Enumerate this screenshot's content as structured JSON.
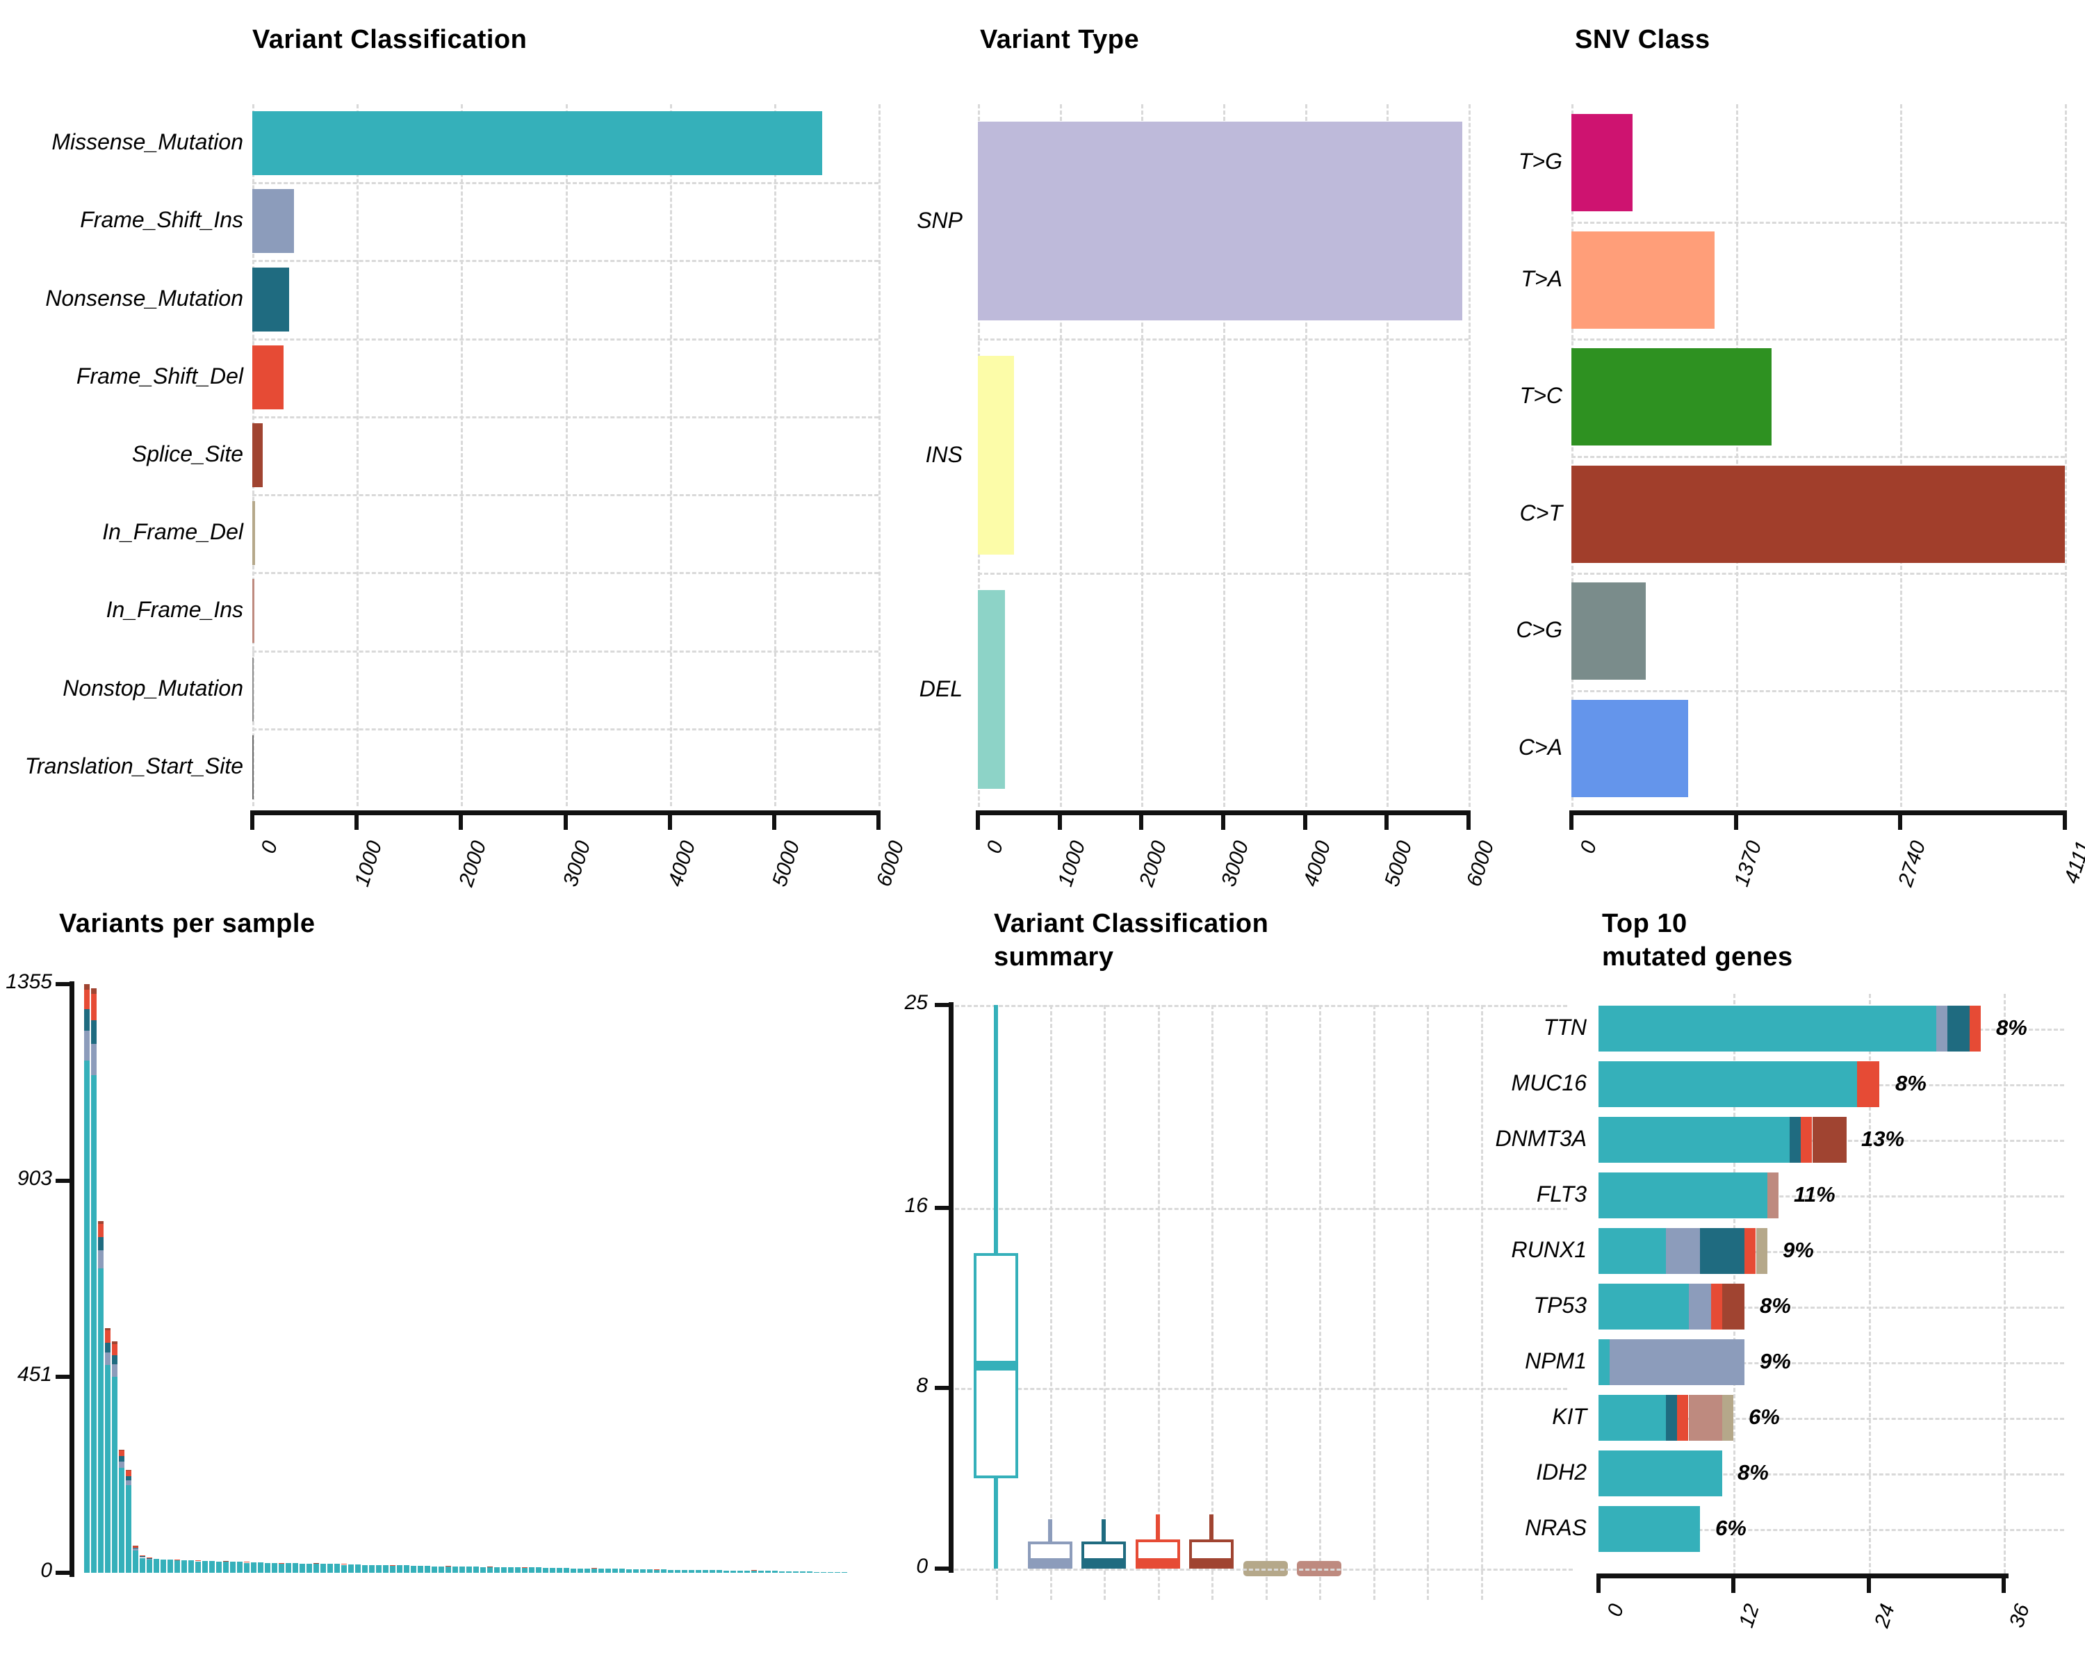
{
  "colors": {
    "missense": "#35B0BA",
    "frame_shift_ins": "#8C9CBB",
    "nonsense": "#1F6B80",
    "frame_shift_del": "#E64B35",
    "splice_site": "#A04431",
    "in_frame_del": "#B5A88A",
    "in_frame_ins": "#BE8A7F",
    "nonstop": "#8E8E8E",
    "translation_start_site": "#6b6b6b",
    "snp": "#BEBADA",
    "ins": "#FCFCA8",
    "del": "#8DD3C7",
    "t_g": "#CE1370",
    "t_a": "#FF9E79",
    "t_c": "#2E9121",
    "c_t": "#A13E2B",
    "c_g": "#7A8C8B",
    "c_a": "#6495EB",
    "grid": "#D9D9D9",
    "axis": "#111111"
  },
  "chart_data": [
    {
      "id": "variant_classification",
      "type": "bar",
      "orientation": "horizontal",
      "title": "Variant Classification",
      "categories": [
        "Missense_Mutation",
        "Frame_Shift_Ins",
        "Nonsense_Mutation",
        "Frame_Shift_Del",
        "Splice_Site",
        "In_Frame_Del",
        "In_Frame_Ins",
        "Nonstop_Mutation",
        "Translation_Start_Site"
      ],
      "values": [
        5460,
        400,
        350,
        300,
        100,
        25,
        18,
        6,
        3
      ],
      "color_keys": [
        "missense",
        "frame_shift_ins",
        "nonsense",
        "frame_shift_del",
        "splice_site",
        "in_frame_del",
        "in_frame_ins",
        "nonstop",
        "translation_start_site"
      ],
      "x_ticks": [
        0,
        1000,
        2000,
        3000,
        4000,
        5000,
        6000
      ],
      "x_max": 6000,
      "grid": true,
      "legend_position": "none"
    },
    {
      "id": "variant_type",
      "type": "bar",
      "orientation": "horizontal",
      "title": "Variant Type",
      "categories": [
        "SNP",
        "INS",
        "DEL"
      ],
      "values": [
        5920,
        440,
        330
      ],
      "color_keys": [
        "snp",
        "ins",
        "del"
      ],
      "x_ticks": [
        0,
        1000,
        2000,
        3000,
        4000,
        5000,
        6000
      ],
      "x_max": 6000,
      "grid": true,
      "legend_position": "none"
    },
    {
      "id": "snv_class",
      "type": "bar",
      "orientation": "horizontal",
      "title": "SNV Class",
      "categories": [
        "T>G",
        "T>A",
        "T>C",
        "C>T",
        "C>G",
        "C>A"
      ],
      "values": [
        510,
        1190,
        1670,
        4111,
        620,
        970
      ],
      "color_keys": [
        "t_g",
        "t_a",
        "t_c",
        "c_t",
        "c_g",
        "c_a"
      ],
      "x_ticks": [
        0,
        1370,
        2740,
        4111
      ],
      "x_max": 4111,
      "grid": true,
      "legend_position": "none"
    },
    {
      "id": "variants_per_sample",
      "type": "bar",
      "orientation": "vertical",
      "title": "Variants per sample",
      "ylabel": "",
      "y_ticks": [
        0,
        451,
        903,
        1355
      ],
      "y_max": 1355,
      "stack_order": [
        "missense",
        "frame_shift_ins",
        "nonsense",
        "frame_shift_del",
        "splice_site"
      ],
      "bars": [
        [
          1180,
          68,
          50,
          45,
          12
        ],
        [
          1145,
          72,
          55,
          60,
          13
        ],
        [
          700,
          42,
          30,
          32,
          6
        ],
        [
          478,
          30,
          22,
          28,
          5
        ],
        [
          452,
          28,
          20,
          26,
          6
        ],
        [
          242,
          14,
          12,
          13,
          2
        ],
        [
          202,
          12,
          9,
          12,
          2
        ],
        [
          52,
          4,
          2,
          3,
          1
        ],
        [
          34,
          2,
          1,
          2,
          0
        ],
        [
          30,
          1,
          1,
          2,
          0
        ],
        [
          32,
          0,
          0,
          0,
          0
        ],
        [
          31,
          0,
          0,
          0,
          0
        ],
        [
          30,
          0,
          0,
          0,
          0
        ],
        [
          28,
          0,
          0,
          2,
          0
        ],
        [
          29,
          0,
          0,
          0,
          0
        ],
        [
          28,
          0,
          0,
          0,
          0
        ],
        [
          26,
          0,
          0,
          2,
          0
        ],
        [
          27,
          0,
          0,
          0,
          0
        ],
        [
          27,
          0,
          0,
          0,
          0
        ],
        [
          26,
          0,
          0,
          0,
          0
        ],
        [
          25,
          0,
          0,
          0,
          1
        ],
        [
          25,
          0,
          0,
          0,
          0
        ],
        [
          25,
          0,
          0,
          0,
          0
        ],
        [
          23,
          0,
          0,
          2,
          0
        ],
        [
          24,
          0,
          0,
          0,
          0
        ],
        [
          24,
          0,
          0,
          0,
          0
        ],
        [
          23,
          0,
          0,
          0,
          0
        ],
        [
          23,
          0,
          0,
          0,
          0
        ],
        [
          21,
          0,
          0,
          2,
          0
        ],
        [
          22,
          0,
          0,
          0,
          0
        ],
        [
          22,
          0,
          0,
          0,
          0
        ],
        [
          21,
          0,
          0,
          0,
          0
        ],
        [
          21,
          0,
          0,
          0,
          0
        ],
        [
          20,
          0,
          0,
          0,
          1
        ],
        [
          20,
          0,
          0,
          0,
          0
        ],
        [
          20,
          0,
          0,
          0,
          0
        ],
        [
          20,
          0,
          0,
          0,
          0
        ],
        [
          18,
          0,
          0,
          2,
          0
        ],
        [
          19,
          0,
          0,
          0,
          0
        ],
        [
          19,
          0,
          0,
          0,
          0
        ],
        [
          18,
          0,
          0,
          0,
          0
        ],
        [
          18,
          0,
          0,
          0,
          0
        ],
        [
          18,
          0,
          0,
          0,
          0
        ],
        [
          17,
          0,
          0,
          0,
          0
        ],
        [
          16,
          0,
          0,
          1,
          0
        ],
        [
          17,
          0,
          0,
          0,
          0
        ],
        [
          17,
          0,
          0,
          0,
          0
        ],
        [
          16,
          0,
          0,
          0,
          0
        ],
        [
          16,
          0,
          0,
          0,
          0
        ],
        [
          16,
          0,
          0,
          0,
          0
        ],
        [
          15,
          0,
          0,
          0,
          0
        ],
        [
          15,
          0,
          0,
          0,
          0
        ],
        [
          14,
          0,
          0,
          1,
          0
        ],
        [
          15,
          0,
          0,
          0,
          0
        ],
        [
          14,
          0,
          0,
          0,
          0
        ],
        [
          14,
          0,
          0,
          0,
          0
        ],
        [
          14,
          0,
          0,
          0,
          0
        ],
        [
          13,
          0,
          0,
          0,
          0
        ],
        [
          13,
          0,
          0,
          0,
          1
        ],
        [
          13,
          0,
          0,
          0,
          0
        ],
        [
          13,
          0,
          0,
          0,
          0
        ],
        [
          12,
          0,
          0,
          0,
          0
        ],
        [
          12,
          0,
          0,
          0,
          0
        ],
        [
          11,
          0,
          0,
          1,
          0
        ],
        [
          12,
          0,
          0,
          0,
          0
        ],
        [
          12,
          0,
          0,
          0,
          0
        ],
        [
          11,
          0,
          0,
          0,
          0
        ],
        [
          11,
          0,
          0,
          0,
          0
        ],
        [
          11,
          0,
          0,
          0,
          0
        ],
        [
          11,
          0,
          0,
          0,
          0
        ],
        [
          10,
          0,
          0,
          0,
          0
        ],
        [
          10,
          0,
          0,
          0,
          0
        ],
        [
          10,
          0,
          0,
          0,
          0
        ],
        [
          9,
          0,
          0,
          1,
          0
        ],
        [
          9,
          0,
          0,
          0,
          0
        ],
        [
          9,
          0,
          0,
          0,
          0
        ],
        [
          9,
          0,
          0,
          0,
          0
        ],
        [
          9,
          0,
          0,
          0,
          0
        ],
        [
          8,
          0,
          0,
          0,
          0
        ],
        [
          8,
          0,
          0,
          0,
          0
        ],
        [
          8,
          0,
          0,
          0,
          0
        ],
        [
          8,
          0,
          0,
          0,
          0
        ],
        [
          7,
          0,
          0,
          1,
          0
        ],
        [
          8,
          0,
          0,
          0,
          0
        ],
        [
          7,
          0,
          0,
          0,
          0
        ],
        [
          7,
          0,
          0,
          0,
          0
        ],
        [
          7,
          0,
          0,
          0,
          0
        ],
        [
          6,
          0,
          0,
          0,
          0
        ],
        [
          6,
          0,
          0,
          0,
          0
        ],
        [
          6,
          0,
          0,
          0,
          0
        ],
        [
          6,
          0,
          0,
          0,
          0
        ],
        [
          6,
          0,
          0,
          0,
          0
        ],
        [
          5,
          0,
          0,
          0,
          0
        ],
        [
          5,
          0,
          0,
          0,
          0
        ],
        [
          5,
          0,
          0,
          0,
          0
        ],
        [
          5,
          0,
          0,
          0,
          0
        ],
        [
          4,
          0,
          0,
          1,
          0
        ],
        [
          4,
          0,
          0,
          0,
          0
        ],
        [
          4,
          0,
          0,
          0,
          0
        ],
        [
          4,
          0,
          0,
          0,
          0
        ],
        [
          3,
          0,
          0,
          0,
          0
        ],
        [
          3,
          0,
          0,
          0,
          0
        ],
        [
          3,
          0,
          0,
          0,
          0
        ],
        [
          3,
          0,
          0,
          0,
          0
        ],
        [
          3,
          0,
          0,
          0,
          0
        ],
        [
          2,
          0,
          0,
          0,
          0
        ],
        [
          2,
          0,
          0,
          0,
          0
        ],
        [
          2,
          0,
          0,
          0,
          0
        ],
        [
          2,
          0,
          0,
          0,
          0
        ],
        [
          2,
          0,
          0,
          0,
          0
        ]
      ]
    },
    {
      "id": "classification_summary",
      "type": "boxplot",
      "title_line1": "Variant Classification",
      "title_line2": "summary",
      "y_ticks": [
        0,
        8,
        16,
        25
      ],
      "y_max": 25,
      "n_grid_columns": 10,
      "boxes": [
        {
          "color_key": "missense",
          "low": 0,
          "q1": 4,
          "median": 9,
          "q3": 14,
          "high": 25,
          "flat": false
        },
        {
          "color_key": "frame_shift_ins",
          "low": 0,
          "q1": 0,
          "median": 0.25,
          "q3": 1.2,
          "high": 2.2,
          "flat": false
        },
        {
          "color_key": "nonsense",
          "low": 0,
          "q1": 0,
          "median": 0.25,
          "q3": 1.2,
          "high": 2.2,
          "flat": false
        },
        {
          "color_key": "frame_shift_del",
          "low": 0,
          "q1": 0,
          "median": 0.25,
          "q3": 1.3,
          "high": 2.4,
          "flat": false
        },
        {
          "color_key": "splice_site",
          "low": 0,
          "q1": 0,
          "median": 0.25,
          "q3": 1.3,
          "high": 2.4,
          "flat": false
        },
        {
          "color_key": "in_frame_del",
          "low": 0,
          "q1": 0,
          "median": 0.1,
          "q3": 0.4,
          "high": 0.4,
          "flat": true
        },
        {
          "color_key": "in_frame_ins",
          "low": 0,
          "q1": 0,
          "median": 0.1,
          "q3": 0.4,
          "high": 0.4,
          "flat": true
        }
      ]
    },
    {
      "id": "top_genes",
      "type": "bar",
      "orientation": "horizontal",
      "title_line1": "Top 10",
      "title_line2": "mutated genes",
      "x_ticks": [
        0,
        12,
        24,
        36
      ],
      "x_max": 36,
      "genes": [
        {
          "name": "TTN",
          "pct": "8%",
          "segments": [
            [
              "missense",
              30
            ],
            [
              "frame_shift_ins",
              1
            ],
            [
              "nonsense",
              2
            ],
            [
              "frame_shift_del",
              1
            ]
          ]
        },
        {
          "name": "MUC16",
          "pct": "8%",
          "segments": [
            [
              "missense",
              23
            ],
            [
              "frame_shift_del",
              2
            ]
          ]
        },
        {
          "name": "DNMT3A",
          "pct": "13%",
          "segments": [
            [
              "missense",
              17
            ],
            [
              "nonsense",
              1
            ],
            [
              "frame_shift_del",
              1
            ],
            [
              "splice_site",
              3
            ]
          ]
        },
        {
          "name": "FLT3",
          "pct": "11%",
          "segments": [
            [
              "missense",
              15
            ],
            [
              "in_frame_ins",
              1
            ]
          ]
        },
        {
          "name": "RUNX1",
          "pct": "9%",
          "segments": [
            [
              "missense",
              6
            ],
            [
              "frame_shift_ins",
              3
            ],
            [
              "nonsense",
              4
            ],
            [
              "frame_shift_del",
              1
            ],
            [
              "in_frame_del",
              1
            ]
          ]
        },
        {
          "name": "TP53",
          "pct": "8%",
          "segments": [
            [
              "missense",
              8
            ],
            [
              "frame_shift_ins",
              2
            ],
            [
              "frame_shift_del",
              1
            ],
            [
              "splice_site",
              2
            ]
          ]
        },
        {
          "name": "NPM1",
          "pct": "9%",
          "segments": [
            [
              "missense",
              1
            ],
            [
              "frame_shift_ins",
              12
            ]
          ]
        },
        {
          "name": "KIT",
          "pct": "6%",
          "segments": [
            [
              "missense",
              6
            ],
            [
              "nonsense",
              1
            ],
            [
              "frame_shift_del",
              1
            ],
            [
              "in_frame_ins",
              3
            ],
            [
              "in_frame_del",
              1
            ]
          ]
        },
        {
          "name": "IDH2",
          "pct": "8%",
          "segments": [
            [
              "missense",
              11
            ]
          ]
        },
        {
          "name": "NRAS",
          "pct": "6%",
          "segments": [
            [
              "missense",
              9
            ]
          ]
        }
      ]
    }
  ]
}
